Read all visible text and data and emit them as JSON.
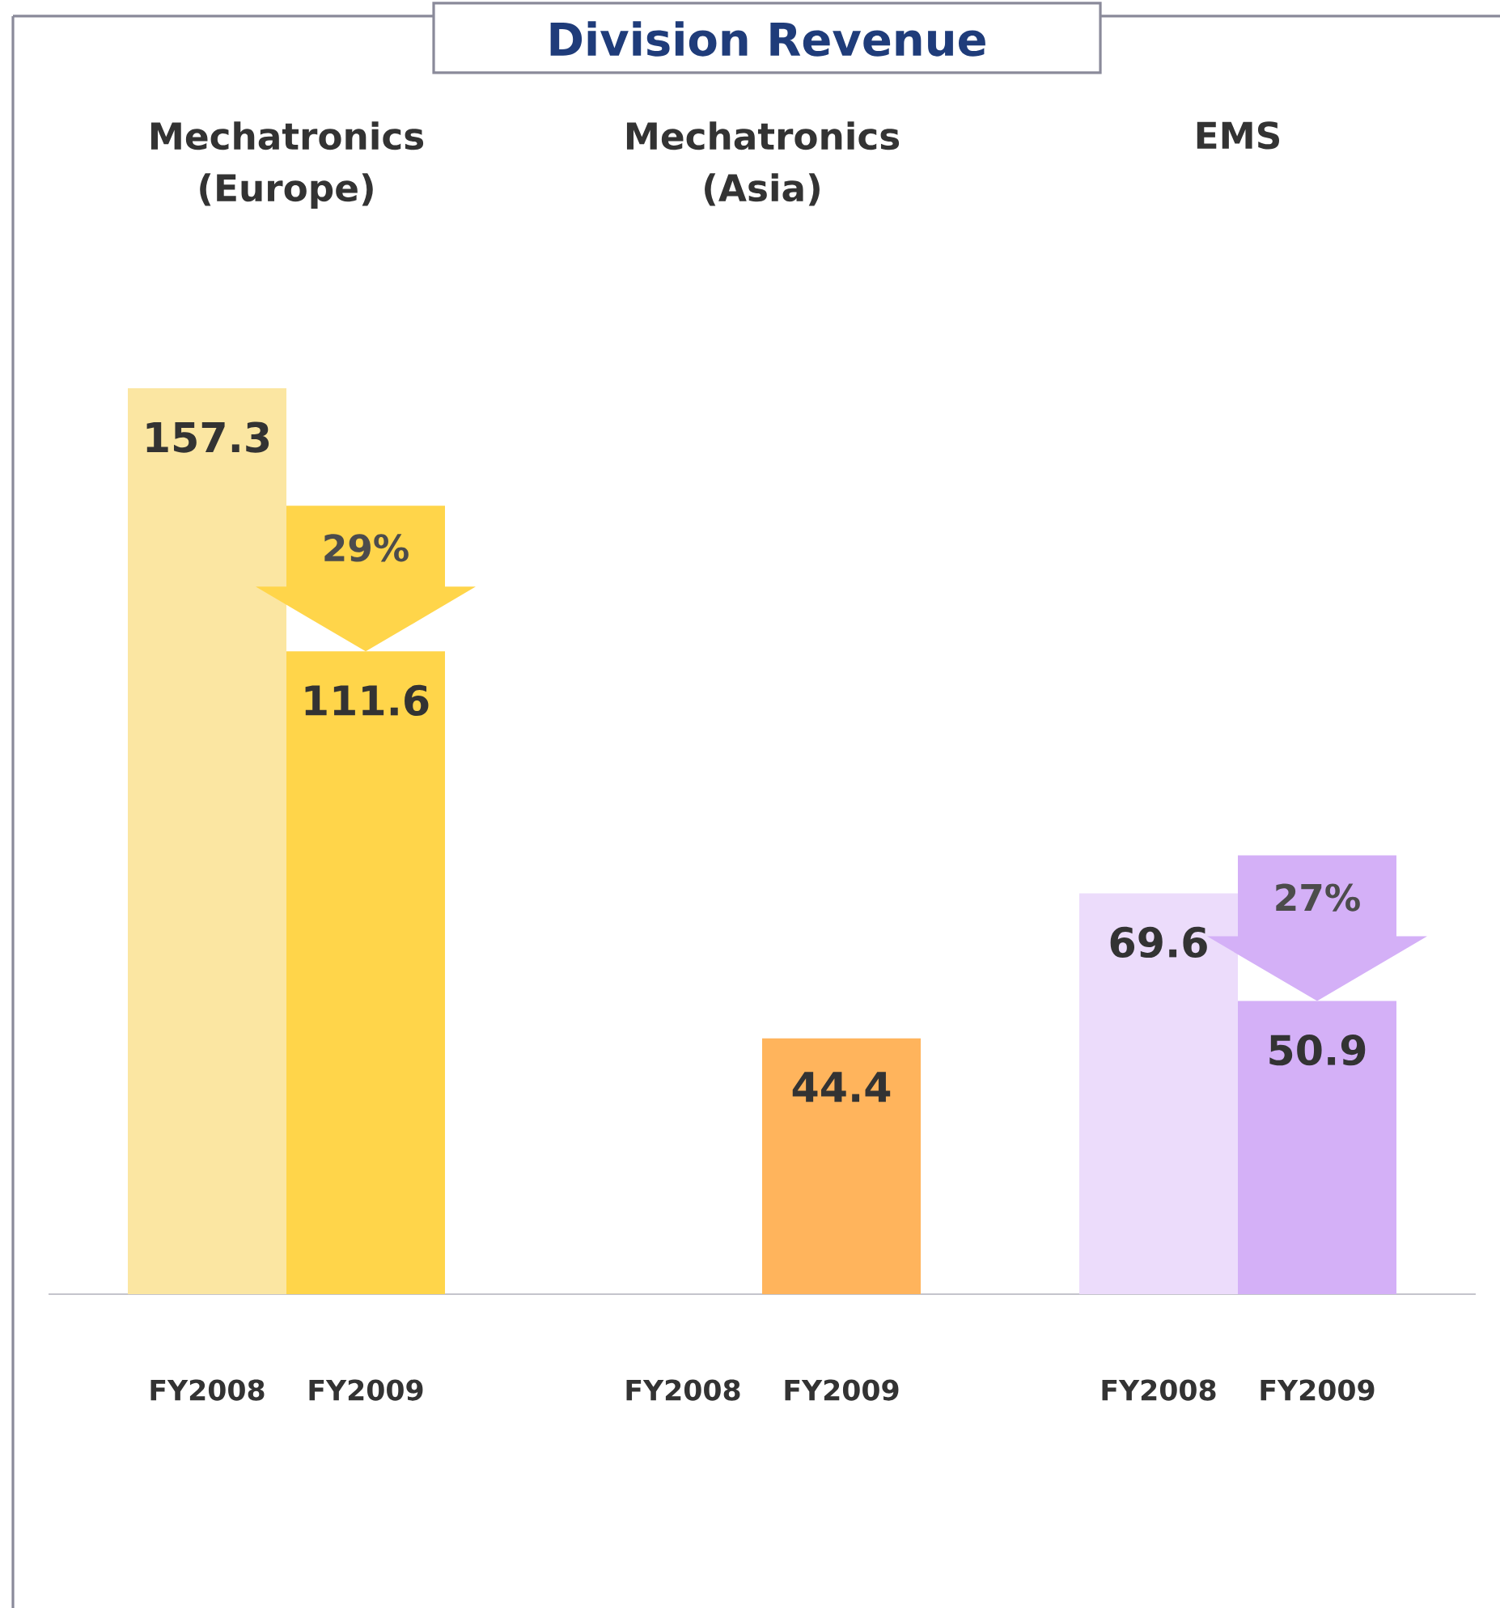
{
  "chart_data": {
    "type": "bar",
    "title": "Division Revenue",
    "categories": [
      "FY2008",
      "FY2009",
      null,
      "FY2008",
      "FY2009",
      null,
      "FY2008",
      "FY2009"
    ],
    "values": [
      157.3,
      111.6,
      null,
      null,
      44.4,
      null,
      69.6,
      50.9
    ],
    "colors": [
      "#fbe6a2",
      "#ffd54a",
      null,
      "#ffd8b0",
      "#ffb45c",
      null,
      "#ecdcfb",
      "#d4b0f7"
    ],
    "data_labels": true,
    "annotations": [
      "Mechatronics (Europe)",
      "Mechatronics (Asia)",
      "EMS",
      "29%",
      "27%"
    ]
  }
}
